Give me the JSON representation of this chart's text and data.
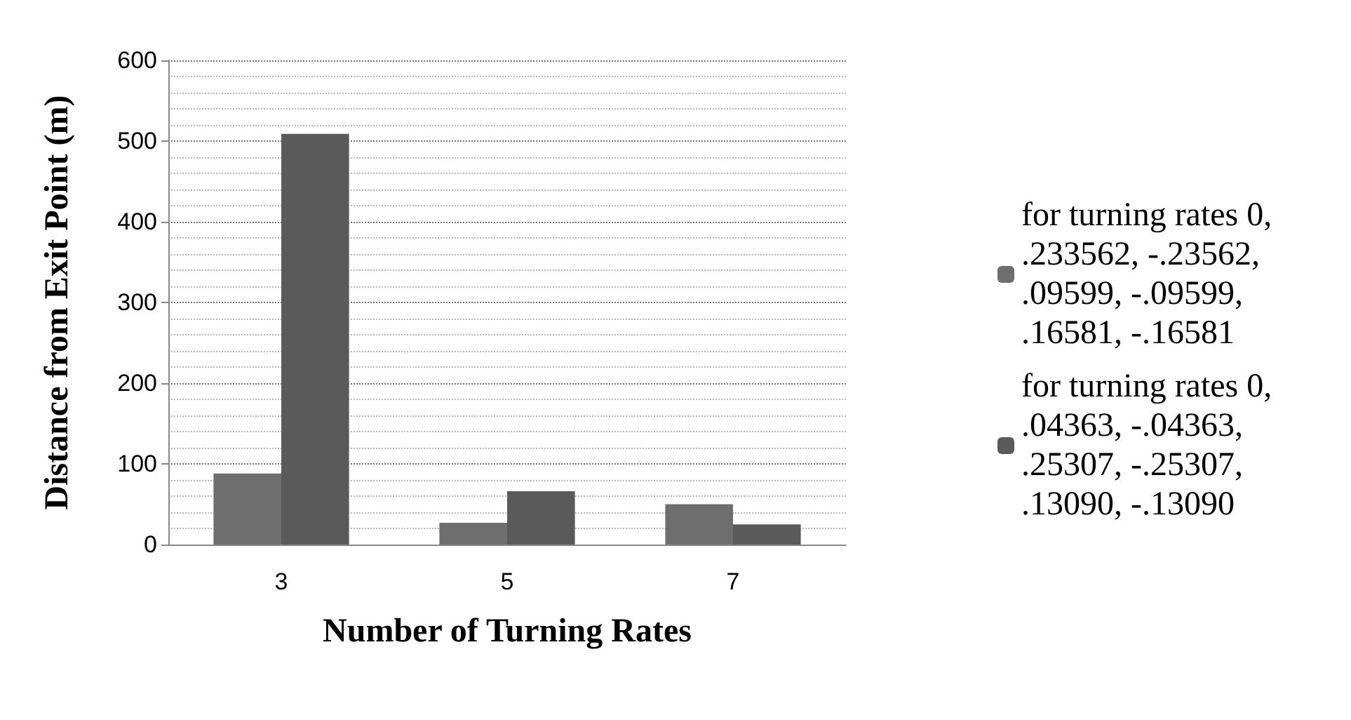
{
  "chart_data": {
    "type": "bar",
    "xlabel": "Number of Turning Rates",
    "ylabel": "Distance from Exit Point (m)",
    "categories": [
      "3",
      "5",
      "7"
    ],
    "series": [
      {
        "name": "for turning rates 0, .233562, -.23562, .09599, -.09599, .16581, -.16581",
        "color": "#6e6e6e",
        "values": [
          88,
          27,
          50
        ]
      },
      {
        "name": "for turning rates 0, .04363, -.04363, .25307, -.25307, .13090, -.13090",
        "color": "#5a5a5a",
        "values": [
          509,
          66,
          25
        ]
      }
    ],
    "ylim": [
      0,
      600
    ],
    "yticks": [
      0,
      100,
      200,
      300,
      400,
      500,
      600
    ],
    "grid": true,
    "legend": "right"
  }
}
